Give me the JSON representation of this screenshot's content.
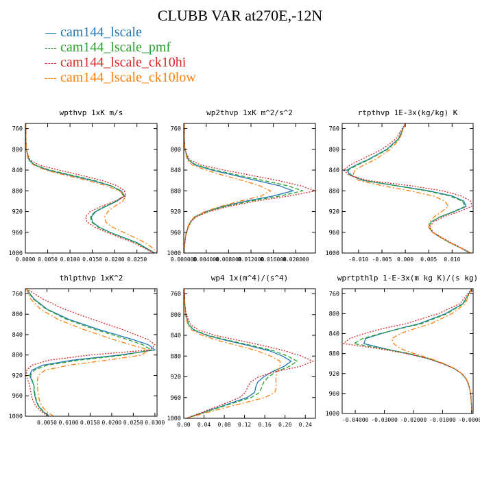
{
  "title": "CLUBB VAR at270E,-12N",
  "colors": {
    "blue": "#1f77b4",
    "green": "#2ca02c",
    "red": "#d62728",
    "orange": "#ff7f0e"
  },
  "legend": [
    {
      "name": "cam144_lscale",
      "color": "#1f77b4",
      "style": "solid"
    },
    {
      "name": "cam144_lscale_pmf",
      "color": "#2ca02c",
      "style": "dashed"
    },
    {
      "name": "cam144_lscale_ck10hi",
      "color": "#d62728",
      "style": "dotted"
    },
    {
      "name": "cam144_lscale_ck10low",
      "color": "#ff7f0e",
      "style": "dashdot"
    }
  ],
  "chart_data": [
    {
      "type": "line",
      "title": "wpthvp   1xK m/s",
      "xlim": [
        0,
        0.0295
      ],
      "ylim": [
        1000,
        750
      ],
      "xticks": [
        0,
        0.005,
        0.01,
        0.015,
        0.02,
        0.025
      ],
      "xtick_labels": [
        "0.0000",
        "0.0050",
        "0.0100",
        "0.0150",
        "0.0200",
        "0.0250"
      ],
      "yticks": [
        760,
        800,
        840,
        880,
        920,
        960,
        1000
      ],
      "y": [
        750,
        780,
        800,
        820,
        830,
        840,
        850,
        860,
        870,
        880,
        890,
        900,
        910,
        920,
        930,
        940,
        950,
        960,
        970,
        980,
        990,
        1000
      ],
      "series": [
        {
          "values": [
            0.0001,
            0.0001,
            0.0002,
            0.0008,
            0.002,
            0.005,
            0.01,
            0.015,
            0.019,
            0.0215,
            0.0222,
            0.0205,
            0.018,
            0.0158,
            0.0148,
            0.015,
            0.0165,
            0.019,
            0.022,
            0.025,
            0.027,
            0.029
          ]
        },
        {
          "values": [
            0.0001,
            0.0001,
            0.0002,
            0.0008,
            0.0022,
            0.0055,
            0.0105,
            0.0155,
            0.0192,
            0.0212,
            0.022,
            0.0203,
            0.0178,
            0.0156,
            0.0146,
            0.0148,
            0.0163,
            0.0188,
            0.0218,
            0.0248,
            0.0268,
            0.0288
          ]
        },
        {
          "values": [
            0.0001,
            0.0001,
            0.0002,
            0.001,
            0.003,
            0.0075,
            0.0125,
            0.0172,
            0.0205,
            0.0222,
            0.0225,
            0.02,
            0.017,
            0.0145,
            0.0135,
            0.0138,
            0.0155,
            0.0182,
            0.0212,
            0.0242,
            0.0265,
            0.0288
          ]
        },
        {
          "values": [
            0.0001,
            0.0001,
            0.0002,
            0.0006,
            0.0018,
            0.0045,
            0.009,
            0.014,
            0.018,
            0.021,
            0.0225,
            0.0218,
            0.02,
            0.0185,
            0.0178,
            0.018,
            0.0195,
            0.022,
            0.0245,
            0.0268,
            0.0285,
            0.0295
          ]
        }
      ]
    },
    {
      "type": "line",
      "title": "wp2thvp  1xK m^2/s^2",
      "xlim": [
        0,
        0.0235
      ],
      "ylim": [
        1000,
        750
      ],
      "xticks": [
        0,
        0.004,
        0.008,
        0.012,
        0.016,
        0.02
      ],
      "xtick_labels": [
        "0.000000",
        "0.004000",
        "0.008000",
        "0.012000",
        "0.016000",
        "0.020000"
      ],
      "yticks": [
        760,
        800,
        840,
        880,
        920,
        960,
        1000
      ],
      "y": [
        750,
        780,
        800,
        820,
        830,
        840,
        850,
        860,
        870,
        880,
        890,
        900,
        910,
        920,
        930,
        940,
        950,
        960,
        970,
        980,
        990,
        1000
      ],
      "series": [
        {
          "values": [
            0.0001,
            0.0001,
            0.0002,
            0.0008,
            0.002,
            0.005,
            0.009,
            0.013,
            0.017,
            0.0195,
            0.016,
            0.011,
            0.007,
            0.004,
            0.002,
            0.0012,
            0.0008,
            0.0005,
            0.0003,
            0.0002,
            0.0001,
            0.0001
          ]
        },
        {
          "values": [
            0.0001,
            0.0001,
            0.0002,
            0.0008,
            0.0022,
            0.0055,
            0.0098,
            0.0142,
            0.0185,
            0.0212,
            0.0172,
            0.0118,
            0.0074,
            0.0042,
            0.0021,
            0.0012,
            0.0008,
            0.0005,
            0.0003,
            0.0002,
            0.0001,
            0.0001
          ]
        },
        {
          "values": [
            0.0001,
            0.0001,
            0.0002,
            0.001,
            0.003,
            0.0072,
            0.012,
            0.0168,
            0.0208,
            0.0235,
            0.0188,
            0.0128,
            0.008,
            0.0045,
            0.0022,
            0.0013,
            0.0008,
            0.0005,
            0.0003,
            0.0002,
            0.0001,
            0.0001
          ]
        },
        {
          "values": [
            0.0001,
            0.0001,
            0.0002,
            0.0006,
            0.0015,
            0.004,
            0.007,
            0.0105,
            0.0135,
            0.0155,
            0.0138,
            0.01,
            0.0065,
            0.0038,
            0.0019,
            0.0011,
            0.0007,
            0.0004,
            0.0003,
            0.0002,
            0.0001,
            0.0001
          ]
        }
      ]
    },
    {
      "type": "line",
      "title": "rtpthvp   1E-3x(kg/kg) K",
      "xlim": [
        -0.0135,
        0.0145
      ],
      "ylim": [
        1000,
        750
      ],
      "xticks": [
        -0.01,
        -0.005,
        0,
        0.005,
        0.01
      ],
      "xtick_labels": [
        "-0.010",
        "-0.005",
        "0.000",
        "0.005",
        "0.010"
      ],
      "yticks": [
        760,
        800,
        840,
        880,
        920,
        960,
        1000
      ],
      "y": [
        750,
        780,
        800,
        820,
        830,
        840,
        850,
        860,
        870,
        880,
        890,
        900,
        910,
        920,
        930,
        940,
        950,
        960,
        970,
        980,
        990,
        1000
      ],
      "series": [
        {
          "values": [
            0.0,
            -0.0015,
            -0.004,
            -0.008,
            -0.0105,
            -0.0125,
            -0.0118,
            -0.009,
            -0.002,
            0.005,
            0.01,
            0.0125,
            0.013,
            0.0105,
            0.0075,
            0.0055,
            0.005,
            0.0058,
            0.0075,
            0.0095,
            0.0118,
            0.0138
          ]
        },
        {
          "values": [
            0.0,
            -0.0014,
            -0.0038,
            -0.0078,
            -0.0102,
            -0.0122,
            -0.0115,
            -0.0088,
            -0.0022,
            0.0045,
            0.0095,
            0.0122,
            0.0128,
            0.0103,
            0.0074,
            0.0055,
            0.005,
            0.0058,
            0.0075,
            0.0095,
            0.0118,
            0.0138
          ]
        },
        {
          "values": [
            0.0,
            -0.002,
            -0.005,
            -0.0095,
            -0.0118,
            -0.0132,
            -0.012,
            -0.008,
            0.001,
            0.008,
            0.012,
            0.014,
            0.0142,
            0.0115,
            0.0082,
            0.006,
            0.0052,
            0.006,
            0.0078,
            0.0098,
            0.012,
            0.014
          ]
        },
        {
          "values": [
            0.0,
            -0.0012,
            -0.0032,
            -0.0065,
            -0.0088,
            -0.0108,
            -0.0112,
            -0.01,
            -0.005,
            0.001,
            0.006,
            0.0085,
            0.0092,
            0.0078,
            0.0062,
            0.0052,
            0.005,
            0.0058,
            0.0075,
            0.0095,
            0.0118,
            0.014
          ]
        }
      ]
    },
    {
      "type": "line",
      "title": "thlpthvp  1xK^2",
      "xlim": [
        0,
        0.0305
      ],
      "ylim": [
        1000,
        750
      ],
      "xticks": [
        0.005,
        0.01,
        0.015,
        0.02,
        0.025,
        0.03
      ],
      "xtick_labels": [
        "0.0050",
        "0.0100",
        "0.0150",
        "0.0200",
        "0.0250",
        "0.0300"
      ],
      "yticks": [
        760,
        800,
        840,
        880,
        920,
        960,
        1000
      ],
      "y": [
        750,
        770,
        790,
        810,
        830,
        850,
        860,
        870,
        880,
        890,
        900,
        910,
        920,
        930,
        940,
        950,
        960,
        970,
        980,
        990,
        1000
      ],
      "series": [
        {
          "values": [
            0.0002,
            0.002,
            0.005,
            0.01,
            0.017,
            0.025,
            0.0285,
            0.03,
            0.022,
            0.011,
            0.004,
            0.0015,
            0.001,
            0.0015,
            0.002,
            0.002,
            0.0022,
            0.0025,
            0.003,
            0.004,
            0.0055
          ]
        },
        {
          "values": [
            0.0002,
            0.0018,
            0.0048,
            0.0095,
            0.0162,
            0.0238,
            0.0272,
            0.0292,
            0.023,
            0.0125,
            0.005,
            0.002,
            0.0012,
            0.0016,
            0.002,
            0.0021,
            0.0023,
            0.0026,
            0.0031,
            0.0041,
            0.0056
          ]
        },
        {
          "values": [
            0.0002,
            0.004,
            0.009,
            0.0155,
            0.0225,
            0.0285,
            0.03,
            0.029,
            0.015,
            0.0055,
            0.0015,
            0.0003,
            0.0002,
            0.0006,
            0.001,
            0.0012,
            0.0014,
            0.0018,
            0.0024,
            0.0036,
            0.0052
          ]
        },
        {
          "values": [
            0.0002,
            0.0012,
            0.0035,
            0.0075,
            0.0135,
            0.0205,
            0.0245,
            0.0285,
            0.027,
            0.019,
            0.01,
            0.0045,
            0.003,
            0.0028,
            0.0028,
            0.0029,
            0.003,
            0.0033,
            0.0038,
            0.0048,
            0.0065
          ]
        }
      ]
    },
    {
      "type": "line",
      "title": "wp4  1x(m^4)/(s^4)",
      "xlim": [
        0,
        0.26
      ],
      "ylim": [
        1000,
        750
      ],
      "xticks": [
        0,
        0.04,
        0.08,
        0.12,
        0.16,
        0.2,
        0.24
      ],
      "xtick_labels": [
        "0.00",
        "0.04",
        "0.08",
        "0.12",
        "0.16",
        "0.20",
        "0.24"
      ],
      "yticks": [
        760,
        800,
        840,
        880,
        920,
        960,
        1000
      ],
      "y": [
        750,
        780,
        800,
        820,
        830,
        840,
        850,
        860,
        870,
        880,
        890,
        900,
        910,
        920,
        930,
        940,
        950,
        960,
        970,
        980,
        990,
        1000
      ],
      "series": [
        {
          "values": [
            0.001,
            0.002,
            0.004,
            0.01,
            0.02,
            0.045,
            0.085,
            0.13,
            0.17,
            0.195,
            0.212,
            0.198,
            0.175,
            0.158,
            0.146,
            0.142,
            0.14,
            0.125,
            0.095,
            0.065,
            0.035,
            0.005
          ]
        },
        {
          "values": [
            0.001,
            0.002,
            0.004,
            0.01,
            0.022,
            0.048,
            0.09,
            0.136,
            0.178,
            0.205,
            0.224,
            0.208,
            0.183,
            0.167,
            0.158,
            0.154,
            0.15,
            0.133,
            0.1,
            0.068,
            0.036,
            0.005
          ]
        },
        {
          "values": [
            0.001,
            0.002,
            0.005,
            0.014,
            0.03,
            0.062,
            0.11,
            0.158,
            0.2,
            0.232,
            0.255,
            0.23,
            0.18,
            0.148,
            0.132,
            0.126,
            0.122,
            0.11,
            0.085,
            0.058,
            0.032,
            0.005
          ]
        },
        {
          "values": [
            0.001,
            0.002,
            0.003,
            0.008,
            0.016,
            0.036,
            0.068,
            0.108,
            0.145,
            0.172,
            0.19,
            0.19,
            0.185,
            0.182,
            0.182,
            0.183,
            0.18,
            0.16,
            0.12,
            0.08,
            0.042,
            0.006
          ]
        }
      ]
    },
    {
      "type": "line",
      "title": "wprtpthlp  1-E-3x(m kg K)/(s kg)",
      "xlim": [
        -0.0445,
        0.0005
      ],
      "ylim": [
        1000,
        750
      ],
      "xticks": [
        -0.04,
        -0.03,
        -0.02,
        -0.01,
        0
      ],
      "xtick_labels": [
        "-0.04000",
        "-0.03000",
        "-0.02000",
        "-0.01000",
        "-0.00000"
      ],
      "yticks": [
        760,
        800,
        840,
        880,
        920,
        960,
        1000
      ],
      "y": [
        750,
        780,
        800,
        820,
        830,
        840,
        850,
        860,
        870,
        880,
        890,
        900,
        910,
        920,
        930,
        940,
        950,
        960,
        970,
        980,
        990,
        1000
      ],
      "series": [
        {
          "values": [
            0.0,
            -0.003,
            -0.009,
            -0.018,
            -0.025,
            -0.031,
            -0.0365,
            -0.037,
            -0.03,
            -0.022,
            -0.015,
            -0.01,
            -0.006,
            -0.0035,
            -0.002,
            -0.0012,
            -0.0007,
            -0.0004,
            -0.0002,
            -0.0001,
            0.0,
            0.0
          ]
        },
        {
          "values": [
            0.0,
            -0.0028,
            -0.0085,
            -0.0172,
            -0.0245,
            -0.0315,
            -0.0375,
            -0.0405,
            -0.0305,
            -0.0215,
            -0.0148,
            -0.0098,
            -0.0059,
            -0.0034,
            -0.0019,
            -0.0011,
            -0.0007,
            -0.0004,
            -0.0002,
            -0.0001,
            0.0,
            0.0
          ]
        },
        {
          "values": [
            0.0,
            -0.004,
            -0.0115,
            -0.0225,
            -0.0305,
            -0.037,
            -0.042,
            -0.044,
            -0.032,
            -0.0225,
            -0.0152,
            -0.01,
            -0.006,
            -0.0035,
            -0.002,
            -0.0012,
            -0.0007,
            -0.0004,
            -0.0002,
            -0.0001,
            0.0,
            0.0
          ]
        },
        {
          "values": [
            0.0,
            -0.0022,
            -0.0068,
            -0.014,
            -0.0195,
            -0.0245,
            -0.0275,
            -0.0268,
            -0.0245,
            -0.0198,
            -0.0142,
            -0.0095,
            -0.0058,
            -0.0034,
            -0.0019,
            -0.0011,
            -0.0007,
            -0.0004,
            -0.0002,
            -0.0001,
            0.0,
            0.0
          ]
        }
      ]
    }
  ]
}
